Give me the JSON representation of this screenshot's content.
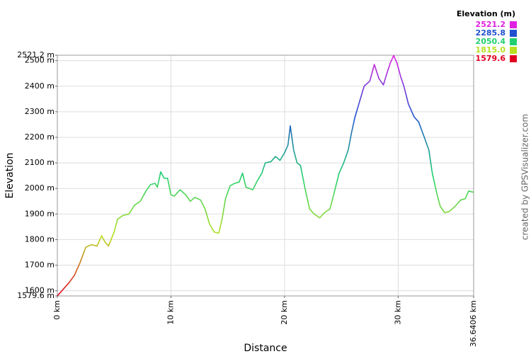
{
  "chart_data": {
    "type": "line",
    "x_label": "Distance",
    "y_label": "Elevation",
    "legend_title": "Elevation (m)",
    "credit": "created by GPSVisualizer.com",
    "color_scale": [
      {
        "value": 2521.2,
        "label": "2521.2",
        "color": "#e020e0"
      },
      {
        "value": 2285.8,
        "label": "2285.8",
        "color": "#2050d0"
      },
      {
        "value": 2050.4,
        "label": "2050.4",
        "color": "#20d070"
      },
      {
        "value": 1815,
        "label": "1815.0",
        "color": "#b8e020"
      },
      {
        "value": 1579.6,
        "label": "1579.6",
        "color": "#e00020"
      }
    ],
    "x": [
      0,
      1,
      1.5,
      2,
      2.5,
      3,
      3.5,
      3.9,
      4.2,
      4.5,
      5,
      5.3,
      5.8,
      6.3,
      6.8,
      7.3,
      7.8,
      8.2,
      8.6,
      8.8,
      9.1,
      9.4,
      9.7,
      10,
      10.3,
      10.8,
      11.3,
      11.7,
      12.1,
      12.6,
      13,
      13.4,
      13.8,
      14.2,
      14.5,
      14.8,
      15.2,
      15.6,
      16,
      16.3,
      16.6,
      17.2,
      17.6,
      18,
      18.3,
      18.8,
      19.2,
      19.6,
      20,
      20.3,
      20.5,
      20.8,
      21.1,
      21.4,
      21.8,
      22.2,
      22.6,
      23.1,
      23.5,
      24,
      24.4,
      24.8,
      25.2,
      25.6,
      25.9,
      26.2,
      26.6,
      27,
      27.5,
      27.9,
      28.3,
      28.7,
      29,
      29.3,
      29.6,
      29.9,
      30.2,
      30.5,
      30.9,
      31.4,
      31.8,
      32.3,
      32.7,
      33,
      33.4,
      33.7,
      34.1,
      34.5,
      35,
      35.5,
      35.9,
      36.2,
      36.6406
    ],
    "values": [
      1580,
      1630,
      1660,
      1710,
      1770,
      1780,
      1775,
      1815,
      1790,
      1775,
      1830,
      1880,
      1895,
      1900,
      1935,
      1950,
      1990,
      2015,
      2020,
      2005,
      2065,
      2040,
      2040,
      1975,
      1970,
      1995,
      1975,
      1950,
      1965,
      1955,
      1920,
      1860,
      1830,
      1825,
      1880,
      1960,
      2010,
      2020,
      2025,
      2060,
      2005,
      1995,
      2030,
      2060,
      2100,
      2105,
      2125,
      2110,
      2140,
      2170,
      2245,
      2150,
      2100,
      2090,
      2000,
      1920,
      1900,
      1885,
      1905,
      1920,
      1990,
      2060,
      2100,
      2150,
      2220,
      2280,
      2340,
      2400,
      2420,
      2485,
      2430,
      2405,
      2450,
      2490,
      2520,
      2490,
      2440,
      2400,
      2330,
      2280,
      2260,
      2200,
      2150,
      2060,
      1980,
      1930,
      1905,
      1910,
      1930,
      1955,
      1960,
      1990,
      1985
    ],
    "xlim": [
      0,
      36.6406
    ],
    "xticks": [
      {
        "value": 0,
        "label": "0 km"
      },
      {
        "value": 10,
        "label": "10 km"
      },
      {
        "value": 20,
        "label": "20 km"
      },
      {
        "value": 30,
        "label": "30 km"
      },
      {
        "value": 36.6406,
        "label": "36.6406 km"
      }
    ],
    "ylim": [
      1579.6,
      2521.2
    ],
    "yticks": [
      {
        "value": 1579.6,
        "label": "1579.6 m"
      },
      {
        "value": 1600,
        "label": "1600 m"
      },
      {
        "value": 1700,
        "label": "1700 m"
      },
      {
        "value": 1800,
        "label": "1800 m"
      },
      {
        "value": 1900,
        "label": "1900 m"
      },
      {
        "value": 2000,
        "label": "2000 m"
      },
      {
        "value": 2100,
        "label": "2100 m"
      },
      {
        "value": 2200,
        "label": "2200 m"
      },
      {
        "value": 2300,
        "label": "2300 m"
      },
      {
        "value": 2400,
        "label": "2400 m"
      },
      {
        "value": 2500,
        "label": "2500 m"
      },
      {
        "value": 2521.2,
        "label": "2521.2 m"
      }
    ],
    "grid": true
  }
}
